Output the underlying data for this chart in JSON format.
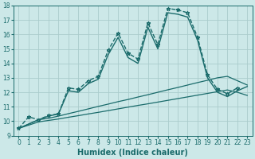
{
  "xlabel": "Humidex (Indice chaleur)",
  "xlim": [
    -0.5,
    23.5
  ],
  "ylim": [
    9,
    18
  ],
  "xticks": [
    0,
    1,
    2,
    3,
    4,
    5,
    6,
    7,
    8,
    9,
    10,
    11,
    12,
    13,
    14,
    15,
    16,
    17,
    18,
    19,
    20,
    21,
    22,
    23
  ],
  "yticks": [
    9,
    10,
    11,
    12,
    13,
    14,
    15,
    16,
    17,
    18
  ],
  "background_color": "#cce8e8",
  "grid_color": "#aacccc",
  "line_color": "#1a6b6b",
  "lines": [
    {
      "x": [
        0,
        1,
        2,
        3,
        4,
        5,
        6,
        7,
        8,
        9,
        10,
        11,
        12,
        13,
        14,
        15,
        16,
        17,
        18,
        19,
        20,
        21,
        22
      ],
      "y": [
        9.5,
        10.3,
        10.1,
        10.4,
        10.5,
        12.3,
        12.2,
        12.8,
        13.1,
        14.9,
        16.1,
        14.7,
        14.3,
        16.8,
        15.3,
        17.8,
        17.7,
        17.5,
        15.8,
        13.2,
        12.2,
        11.9,
        12.3
      ],
      "marker": "*",
      "linestyle": "--",
      "linewidth": 1.0,
      "markersize": 3.5
    },
    {
      "x": [
        0,
        2,
        3,
        4,
        5,
        6,
        7,
        8,
        9,
        10,
        11,
        12,
        13,
        14,
        15,
        16,
        17,
        18,
        19,
        20,
        21,
        22,
        23
      ],
      "y": [
        9.5,
        10.1,
        10.35,
        10.5,
        12.1,
        12.0,
        12.6,
        12.9,
        14.6,
        15.8,
        14.4,
        14.0,
        16.5,
        15.0,
        17.5,
        17.4,
        17.2,
        15.6,
        13.0,
        12.0,
        11.7,
        12.1,
        12.4
      ],
      "marker": "None",
      "linestyle": "-",
      "linewidth": 1.0,
      "markersize": 0
    },
    {
      "x": [
        0,
        2,
        3,
        4,
        5,
        6,
        7,
        8,
        9,
        10,
        11,
        12,
        13,
        14,
        15,
        16,
        17,
        18,
        19,
        20,
        21,
        22,
        23
      ],
      "y": [
        9.5,
        10.1,
        10.2,
        10.35,
        10.52,
        10.68,
        10.85,
        11.02,
        11.18,
        11.35,
        11.5,
        11.67,
        11.83,
        12.0,
        12.17,
        12.33,
        12.5,
        12.67,
        12.83,
        13.0,
        13.1,
        12.8,
        12.5
      ],
      "marker": "None",
      "linestyle": "-",
      "linewidth": 0.9,
      "markersize": 0
    },
    {
      "x": [
        0,
        2,
        3,
        4,
        5,
        6,
        7,
        8,
        9,
        10,
        11,
        12,
        13,
        14,
        15,
        16,
        17,
        18,
        19,
        20,
        21,
        22,
        23
      ],
      "y": [
        9.5,
        9.95,
        10.05,
        10.15,
        10.27,
        10.38,
        10.5,
        10.61,
        10.73,
        10.85,
        10.97,
        11.09,
        11.2,
        11.32,
        11.44,
        11.56,
        11.68,
        11.8,
        11.92,
        12.04,
        12.16,
        12.0,
        11.78
      ],
      "marker": "None",
      "linestyle": "-",
      "linewidth": 0.9,
      "markersize": 0
    }
  ],
  "title_fontsize": 7,
  "label_fontsize": 7,
  "tick_fontsize": 5.5
}
